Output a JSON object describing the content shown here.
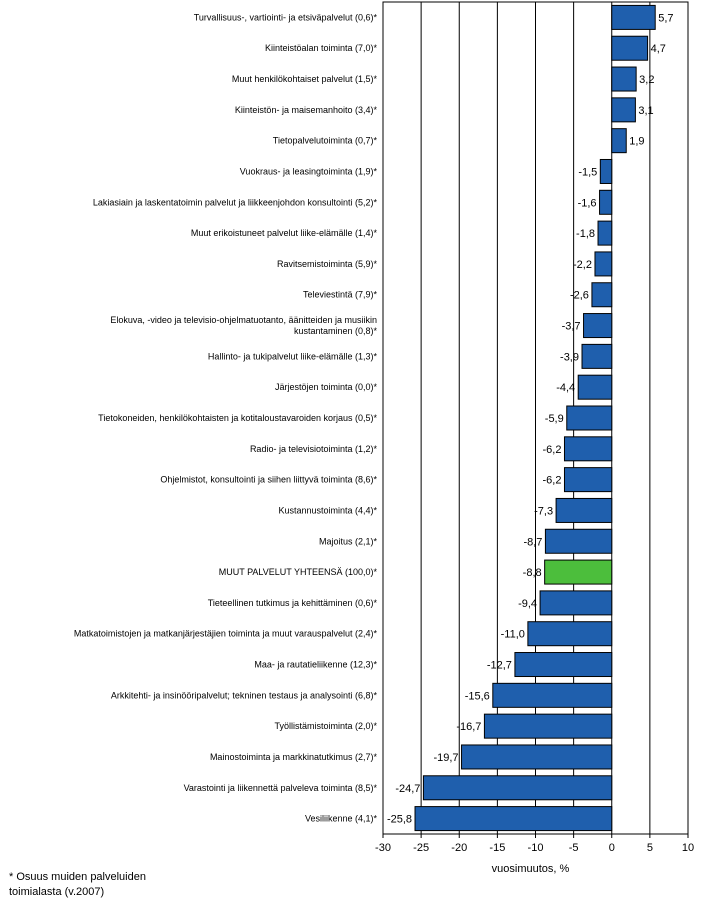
{
  "chart_data": {
    "type": "bar",
    "orientation": "horizontal",
    "xlabel": "vuosimuutos, %",
    "xlim": [
      -30,
      10
    ],
    "xticks": [
      -30,
      -25,
      -20,
      -15,
      -10,
      -5,
      0,
      5,
      10
    ],
    "grid": "vertical",
    "bar_color": "#1f5fad",
    "highlight_color": "#4cbe3c",
    "bars": [
      {
        "label": "Turvallisuus-, vartiointi- ja etsiväpalvelut (0,6)*",
        "value": 5.7,
        "text": "5,7"
      },
      {
        "label": "Kiinteistöalan toiminta (7,0)*",
        "value": 4.7,
        "text": "4,7"
      },
      {
        "label": "Muut henkilökohtaiset palvelut (1,5)*",
        "value": 3.2,
        "text": "3,2"
      },
      {
        "label": "Kiinteistön- ja maisemanhoito (3,4)*",
        "value": 3.1,
        "text": "3,1"
      },
      {
        "label": "Tietopalvelutoiminta (0,7)*",
        "value": 1.9,
        "text": "1,9"
      },
      {
        "label": "Vuokraus- ja leasingtoiminta (1,9)*",
        "value": -1.5,
        "text": "-1,5"
      },
      {
        "label": "Lakiasiain ja laskentatoimin palvelut ja liikkeenjohdon konsultointi (5,2)*",
        "value": -1.6,
        "text": "-1,6"
      },
      {
        "label": "Muut erikoistuneet palvelut liike-elämälle (1,4)*",
        "value": -1.8,
        "text": "-1,8"
      },
      {
        "label": "Ravitsemistoiminta (5,9)*",
        "value": -2.2,
        "text": "-2,2"
      },
      {
        "label": "Televiestintä (7,9)*",
        "value": -2.6,
        "text": "-2,6"
      },
      {
        "label": "Elokuva, -video ja televisio-ohjelmatuotanto, äänitteiden ja musiikin|kustantaminen (0,8)*",
        "value": -3.7,
        "text": "-3,7"
      },
      {
        "label": "Hallinto- ja tukipalvelut liike-elämälle (1,3)*",
        "value": -3.9,
        "text": "-3,9"
      },
      {
        "label": "Järjestöjen toiminta (0,0)*",
        "value": -4.4,
        "text": "-4,4"
      },
      {
        "label": "Tietokoneiden, henkilökohtaisten ja kotitaloustavaroiden korjaus (0,5)*",
        "value": -5.9,
        "text": "-5,9"
      },
      {
        "label": "Radio- ja televisiotoiminta (1,2)*",
        "value": -6.2,
        "text": "-6,2"
      },
      {
        "label": "Ohjelmistot, konsultointi ja siihen liittyvä toiminta (8,6)*",
        "value": -6.2,
        "text": "-6,2"
      },
      {
        "label": "Kustannustoiminta (4,4)*",
        "value": -7.3,
        "text": "-7,3"
      },
      {
        "label": "Majoitus (2,1)*",
        "value": -8.7,
        "text": "-8,7"
      },
      {
        "label": "MUUT PALVELUT YHTEENSÄ (100,0)*",
        "value": -8.8,
        "text": "-8,8",
        "highlight": true
      },
      {
        "label": "Tieteellinen tutkimus ja kehittäminen (0,6)*",
        "value": -9.4,
        "text": "-9,4"
      },
      {
        "label": "Matkatoimistojen ja matkanjärjestäjien toiminta ja muut varauspalvelut (2,4)*",
        "value": -11.0,
        "text": "-11,0"
      },
      {
        "label": "Maa- ja rautatieliikenne (12,3)*",
        "value": -12.7,
        "text": "-12,7"
      },
      {
        "label": "Arkkitehti- ja insinööripalvelut; tekninen testaus ja analysointi (6,8)*",
        "value": -15.6,
        "text": "-15,6"
      },
      {
        "label": "Työllistämistoiminta (2,0)*",
        "value": -16.7,
        "text": "-16,7"
      },
      {
        "label": "Mainostoiminta ja markkinatutkimus (2,7)*",
        "value": -19.7,
        "text": "-19,7"
      },
      {
        "label": "Varastointi ja liikennettä palveleva toiminta (8,5)*",
        "value": -24.7,
        "text": "-24,7"
      },
      {
        "label": "Vesiliikenne (4,1)*",
        "value": -25.8,
        "text": "-25,8"
      }
    ]
  },
  "footnote": {
    "line1": "* Osuus muiden palveluiden",
    "line2": "toimialasta (v.2007)"
  }
}
